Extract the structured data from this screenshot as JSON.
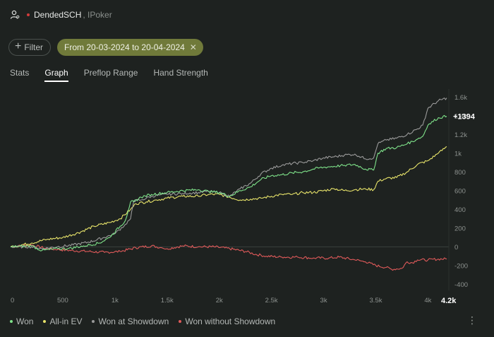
{
  "header": {
    "icon": "user-gear-icon",
    "player_name": "DendedSCH",
    "network": ", IPoker",
    "status_color": "#d33b3b"
  },
  "filters": {
    "filter_label": "Filter",
    "date_range": "From 20-03-2024 to 20-04-2024",
    "close_glyph": "✕"
  },
  "tabs": [
    {
      "label": "Stats",
      "active": false
    },
    {
      "label": "Graph",
      "active": true
    },
    {
      "label": "Preflop Range",
      "active": false
    },
    {
      "label": "Hand Strength",
      "active": false
    }
  ],
  "chart_data": {
    "type": "line",
    "x_label": "",
    "y_label": "",
    "xlim": [
      0,
      4200
    ],
    "ylim": [
      -420,
      1640
    ],
    "x_ticks": [
      0,
      500,
      1000,
      1500,
      2000,
      2500,
      3000,
      3500,
      4000
    ],
    "x_tick_labels": [
      "0",
      "500",
      "1k",
      "1.5k",
      "2k",
      "2.5k",
      "3k",
      "3.5k",
      "4k"
    ],
    "x_end_label": "4.2k",
    "y_ticks": [
      -400,
      -200,
      0,
      200,
      400,
      600,
      800,
      1000,
      1200,
      1400,
      1600
    ],
    "y_tick_labels": [
      "-400",
      "-200",
      "0",
      "200",
      "400",
      "600",
      "800",
      "1k",
      "1.2k",
      "1.4k",
      "1.6k"
    ],
    "end_value_label": "+1394",
    "zero_line": true,
    "legend_position": "bottom-left",
    "series": [
      {
        "name": "Won",
        "color": "#7fe38a",
        "x": [
          0,
          200,
          300,
          450,
          550,
          700,
          850,
          950,
          1050,
          1100,
          1150,
          1180,
          1250,
          1350,
          1500,
          1650,
          1800,
          1900,
          2000,
          2100,
          2200,
          2300,
          2400,
          2500,
          2600,
          2700,
          2800,
          2900,
          3000,
          3100,
          3200,
          3300,
          3400,
          3480,
          3520,
          3600,
          3700,
          3800,
          3900,
          3950,
          4000,
          4100,
          4180
        ],
        "y": [
          0,
          10,
          -40,
          -20,
          -20,
          10,
          40,
          100,
          220,
          280,
          480,
          480,
          530,
          560,
          580,
          600,
          610,
          590,
          580,
          540,
          600,
          640,
          720,
          760,
          770,
          790,
          800,
          830,
          850,
          860,
          870,
          880,
          830,
          820,
          1000,
          1050,
          1060,
          1100,
          1150,
          1180,
          1300,
          1380,
          1394
        ]
      },
      {
        "name": "All-in EV",
        "color": "#e8e46a",
        "x": [
          0,
          200,
          350,
          500,
          650,
          800,
          950,
          1050,
          1150,
          1200,
          1300,
          1400,
          1500,
          1650,
          1800,
          1900,
          2000,
          2100,
          2200,
          2300,
          2400,
          2500,
          2600,
          2700,
          2800,
          2900,
          3000,
          3100,
          3200,
          3300,
          3400,
          3480,
          3520,
          3600,
          3700,
          3800,
          3900,
          4000,
          4100,
          4180
        ],
        "y": [
          0,
          40,
          80,
          100,
          150,
          220,
          260,
          300,
          400,
          460,
          480,
          500,
          520,
          540,
          540,
          560,
          560,
          530,
          500,
          510,
          520,
          540,
          560,
          560,
          580,
          580,
          600,
          620,
          600,
          610,
          620,
          610,
          700,
          730,
          740,
          800,
          880,
          920,
          1000,
          1070
        ]
      },
      {
        "name": "Won at Showdown",
        "color": "#9a9a9a",
        "x": [
          0,
          200,
          300,
          450,
          600,
          750,
          900,
          1000,
          1100,
          1150,
          1180,
          1250,
          1350,
          1500,
          1650,
          1800,
          1900,
          2000,
          2100,
          2200,
          2300,
          2400,
          2500,
          2600,
          2700,
          2800,
          2900,
          3000,
          3100,
          3200,
          3300,
          3400,
          3480,
          3520,
          3600,
          3700,
          3800,
          3900,
          3950,
          4000,
          4100,
          4180
        ],
        "y": [
          0,
          0,
          -20,
          0,
          20,
          50,
          100,
          140,
          240,
          300,
          490,
          500,
          540,
          560,
          570,
          580,
          590,
          580,
          540,
          620,
          680,
          780,
          840,
          870,
          890,
          900,
          920,
          950,
          960,
          980,
          990,
          940,
          950,
          1100,
          1140,
          1160,
          1200,
          1260,
          1300,
          1480,
          1560,
          1590
        ]
      },
      {
        "name": "Won without Showdown",
        "color": "#e05a5a",
        "x": [
          0,
          200,
          350,
          450,
          600,
          750,
          900,
          1050,
          1200,
          1350,
          1450,
          1500,
          1650,
          1800,
          1950,
          2100,
          2250,
          2350,
          2450,
          2600,
          2750,
          2900,
          3050,
          3150,
          3300,
          3400,
          3500,
          3600,
          3650,
          3750,
          3800,
          3850,
          3900,
          4000,
          4100,
          4180
        ],
        "y": [
          0,
          20,
          -20,
          -30,
          -40,
          -50,
          -60,
          -50,
          -10,
          10,
          -10,
          -20,
          10,
          0,
          0,
          -20,
          -50,
          -80,
          -100,
          -110,
          -110,
          -120,
          -120,
          -110,
          -140,
          -160,
          -200,
          -220,
          -240,
          -230,
          -160,
          -170,
          -140,
          -140,
          -130,
          -130
        ]
      }
    ]
  },
  "legend": [
    {
      "label": "Won",
      "color": "#7fe38a"
    },
    {
      "label": "All-in EV",
      "color": "#e8e46a"
    },
    {
      "label": "Won at Showdown",
      "color": "#9a9a9a"
    },
    {
      "label": "Won without Showdown",
      "color": "#e05a5a"
    }
  ],
  "menu": {
    "icon": "kebab-menu-icon",
    "glyph": "⋮"
  }
}
